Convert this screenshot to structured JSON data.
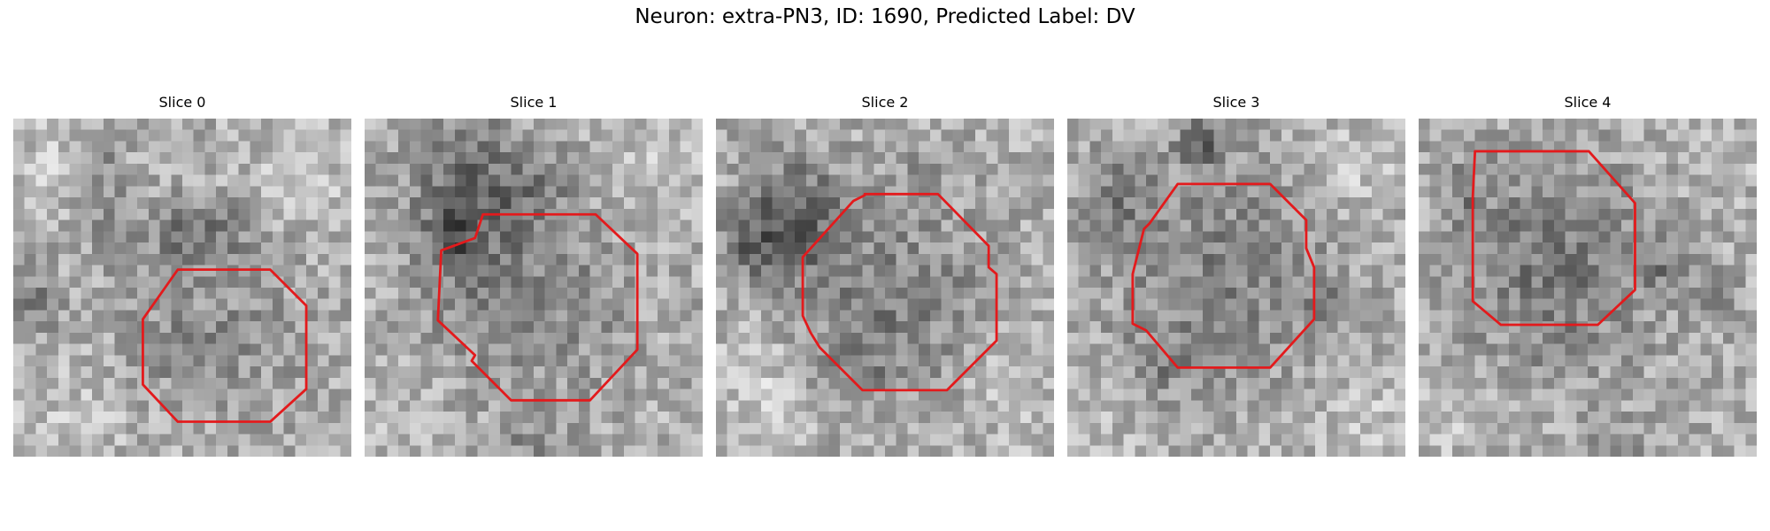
{
  "figure": {
    "title": "Neuron: extra-PN3, ID: 1690, Predicted Label: DV",
    "contour_color": "#e31a1c",
    "colormap": "gray"
  },
  "slices": [
    {
      "title": "Slice 0"
    },
    {
      "title": "Slice 1"
    },
    {
      "title": "Slice 2"
    },
    {
      "title": "Slice 3"
    },
    {
      "title": "Slice 4"
    }
  ]
}
